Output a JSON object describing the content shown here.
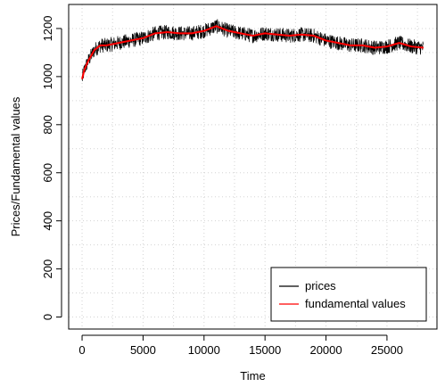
{
  "chart_data": {
    "type": "line",
    "title": "",
    "xlabel": "Time",
    "ylabel": "Prices/Fundamental values",
    "xlim": [
      -1100,
      29100
    ],
    "ylim": [
      -50,
      1300
    ],
    "x_ticks": [
      0,
      5000,
      10000,
      15000,
      20000,
      25000
    ],
    "y_ticks": [
      0,
      200,
      400,
      600,
      800,
      1000,
      1200
    ],
    "grid": true,
    "legend_position": "bottom-right",
    "series": [
      {
        "name": "prices",
        "color": "#000000",
        "noise": 30,
        "x": [
          0,
          200,
          500,
          1000,
          1500,
          2000,
          3000,
          4000,
          5000,
          6000,
          7000,
          8000,
          9000,
          10000,
          11000,
          12000,
          13000,
          14000,
          15000,
          16000,
          17000,
          18000,
          19000,
          20000,
          21000,
          22000,
          23000,
          24000,
          25000,
          26000,
          27000,
          28000
        ],
        "values": [
          990,
          1030,
          1065,
          1110,
          1130,
          1130,
          1140,
          1150,
          1160,
          1180,
          1185,
          1180,
          1180,
          1190,
          1210,
          1190,
          1180,
          1170,
          1180,
          1175,
          1170,
          1175,
          1170,
          1150,
          1140,
          1130,
          1130,
          1120,
          1125,
          1140,
          1125,
          1120
        ]
      },
      {
        "name": "fundamental values",
        "color": "#ff0000",
        "x": [
          0,
          200,
          500,
          1000,
          1500,
          2000,
          3000,
          4000,
          5000,
          6000,
          7000,
          8000,
          9000,
          10000,
          11000,
          12000,
          13000,
          14000,
          15000,
          16000,
          17000,
          18000,
          19000,
          20000,
          21000,
          22000,
          23000,
          24000,
          25000,
          26000,
          27000,
          28000
        ],
        "values": [
          990,
          1030,
          1065,
          1110,
          1130,
          1130,
          1140,
          1150,
          1160,
          1180,
          1185,
          1180,
          1180,
          1190,
          1210,
          1190,
          1180,
          1170,
          1180,
          1175,
          1170,
          1175,
          1170,
          1150,
          1140,
          1130,
          1130,
          1120,
          1125,
          1140,
          1125,
          1120
        ]
      }
    ]
  }
}
